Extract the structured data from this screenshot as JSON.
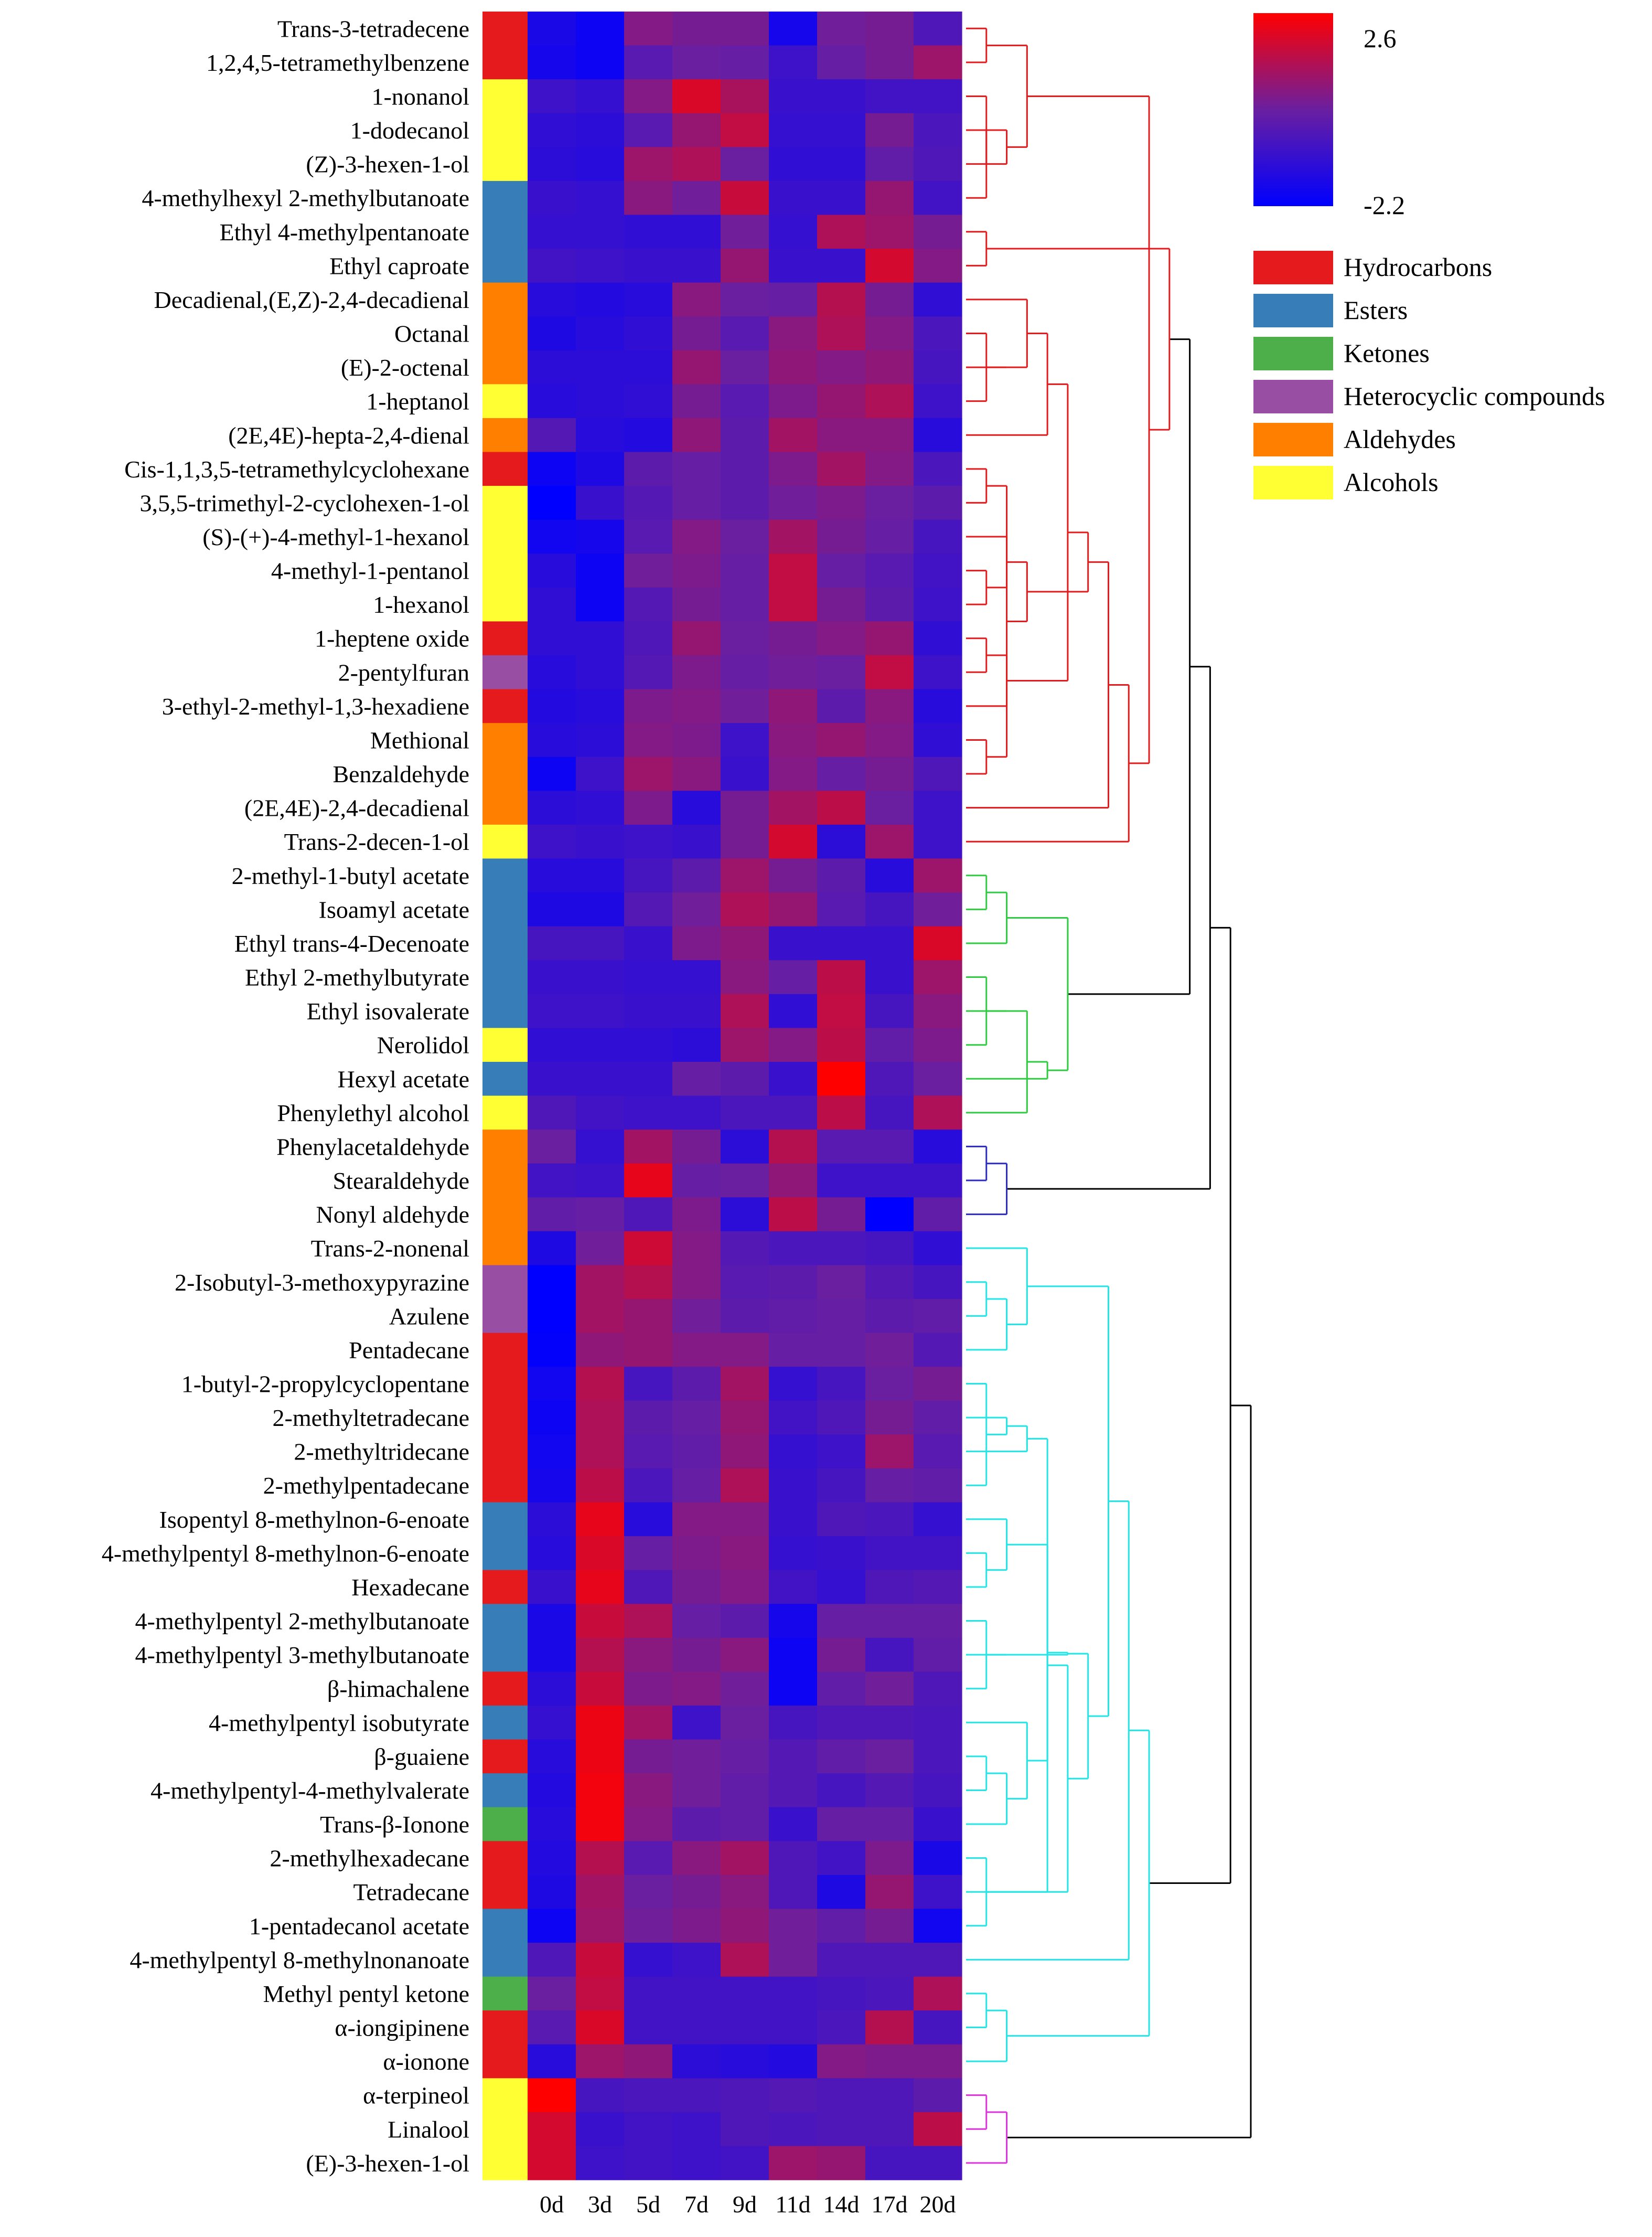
{
  "chart_data": {
    "type": "heatmap",
    "title": "",
    "columns": [
      "0d",
      "3d",
      "5d",
      "7d",
      "9d",
      "11d",
      "14d",
      "17d",
      "20d"
    ],
    "color_scale": {
      "min": -2.2,
      "max": 2.6,
      "min_label": "-2.2",
      "max_label": "2.6",
      "low_color": "#0000ff",
      "mid_color": "#6a1fa0",
      "high_color": "#ff0000"
    },
    "category_legend": [
      {
        "name": "Hydrocarbons",
        "color": "#e41a1c"
      },
      {
        "name": "Esters",
        "color": "#377eb8"
      },
      {
        "name": "Ketones",
        "color": "#4daf4a"
      },
      {
        "name": "Heterocyclic compounds",
        "color": "#984ea3"
      },
      {
        "name": "Aldehydes",
        "color": "#ff7f00"
      },
      {
        "name": "Alcohols",
        "color": "#ffff33"
      }
    ],
    "cluster_colors": [
      "#e41a1c",
      "#2ecc40",
      "#2b2bbf",
      "#22e5e5",
      "#dd33dd"
    ],
    "rows": [
      {
        "name": "Trans-3-tetradecene",
        "category": "Hydrocarbons",
        "cluster": 0,
        "values": [
          -1.6,
          -1.9,
          0.6,
          0.4,
          0.4,
          -1.7,
          0.3,
          0.4,
          -0.4
        ]
      },
      {
        "name": "1,2,4,5-tetramethylbenzene",
        "category": "Hydrocarbons",
        "cluster": 0,
        "values": [
          -1.7,
          -1.9,
          -0.2,
          0.2,
          0.1,
          -0.8,
          0.1,
          0.4,
          1.0
        ]
      },
      {
        "name": "1-nonanol",
        "category": "Alcohols",
        "cluster": 0,
        "values": [
          -0.8,
          -1.0,
          0.6,
          2.0,
          1.2,
          -0.9,
          -0.9,
          -0.7,
          -0.7
        ]
      },
      {
        "name": "1-dodecanol",
        "category": "Alcohols",
        "cluster": 0,
        "values": [
          -1.1,
          -1.2,
          -0.2,
          0.9,
          1.6,
          -1.0,
          -1.0,
          0.4,
          -0.5
        ]
      },
      {
        "name": "(Z)-3-hexen-1-ol",
        "category": "Alcohols",
        "cluster": 0,
        "values": [
          -1.2,
          -1.3,
          1.0,
          1.3,
          0.2,
          -1.1,
          -1.1,
          0.0,
          -0.4
        ]
      },
      {
        "name": "4-methylhexyl 2-methylbutanoate",
        "category": "Esters",
        "cluster": 0,
        "values": [
          -0.9,
          -1.0,
          0.7,
          0.3,
          1.7,
          -0.9,
          -0.9,
          0.9,
          -0.7
        ]
      },
      {
        "name": "Ethyl 4-methylpentanoate",
        "category": "Esters",
        "cluster": 0,
        "values": [
          -1.0,
          -1.0,
          -1.1,
          -1.1,
          0.3,
          -1.0,
          1.3,
          1.0,
          0.4
        ]
      },
      {
        "name": "Ethyl caproate",
        "category": "Esters",
        "cluster": 0,
        "values": [
          -0.7,
          -0.8,
          -0.9,
          -0.9,
          0.9,
          -0.9,
          -0.9,
          1.9,
          0.6
        ]
      },
      {
        "name": "Decadienal,(E,Z)-2,4-decadienal",
        "category": "Aldehydes",
        "cluster": 0,
        "values": [
          -1.3,
          -1.4,
          -1.3,
          0.7,
          0.2,
          0.1,
          1.4,
          0.4,
          -1.1
        ]
      },
      {
        "name": "Octanal",
        "category": "Aldehydes",
        "cluster": 0,
        "values": [
          -1.5,
          -1.3,
          -1.1,
          0.4,
          -0.2,
          0.7,
          1.3,
          0.6,
          -0.5
        ]
      },
      {
        "name": "(E)-2-octenal",
        "category": "Aldehydes",
        "cluster": 0,
        "values": [
          -1.2,
          -1.2,
          -1.2,
          0.9,
          0.2,
          0.8,
          0.6,
          0.8,
          -0.6
        ]
      },
      {
        "name": "1-heptanol",
        "category": "Alcohols",
        "cluster": 0,
        "values": [
          -1.3,
          -1.2,
          -1.1,
          0.4,
          -0.2,
          0.5,
          0.9,
          1.3,
          -0.8
        ]
      },
      {
        "name": "(2E,4E)-hepta-2,4-dienal",
        "category": "Aldehydes",
        "cluster": 0,
        "values": [
          -0.3,
          -1.3,
          -1.4,
          0.8,
          -0.1,
          1.1,
          0.7,
          0.7,
          -1.3
        ]
      },
      {
        "name": "Cis-1,1,3,5-tetramethylcyclohexane",
        "category": "Hydrocarbons",
        "cluster": 0,
        "values": [
          -1.9,
          -1.5,
          -0.1,
          0.1,
          -0.1,
          0.5,
          1.1,
          0.6,
          -0.5
        ]
      },
      {
        "name": "3,5,5-trimethyl-2-cyclohexen-1-ol",
        "category": "Alcohols",
        "cluster": 0,
        "values": [
          -2.2,
          -0.9,
          -0.3,
          0.1,
          -0.1,
          0.3,
          0.5,
          0.2,
          -0.1
        ]
      },
      {
        "name": "(S)-(+)-4-methyl-1-hexanol",
        "category": "Alcohols",
        "cluster": 0,
        "values": [
          -1.8,
          -1.7,
          -0.2,
          0.6,
          0.2,
          1.1,
          0.4,
          0.1,
          -0.6
        ]
      },
      {
        "name": "4-methyl-1-pentanol",
        "category": "Alcohols",
        "cluster": 0,
        "values": [
          -1.3,
          -1.9,
          0.3,
          0.5,
          0.1,
          1.6,
          0.1,
          -0.2,
          -0.7
        ]
      },
      {
        "name": "1-hexanol",
        "category": "Alcohols",
        "cluster": 0,
        "values": [
          -1.1,
          -1.9,
          -0.3,
          0.4,
          0.1,
          1.6,
          0.4,
          -0.1,
          -0.8
        ]
      },
      {
        "name": "1-heptene oxide",
        "category": "Hydrocarbons",
        "cluster": 0,
        "values": [
          -1.1,
          -1.1,
          -0.4,
          0.9,
          0.2,
          0.4,
          0.6,
          0.9,
          -1.1
        ]
      },
      {
        "name": "2-pentylfuran",
        "category": "Heterocyclic compounds",
        "cluster": 0,
        "values": [
          -1.3,
          -1.1,
          -0.3,
          0.5,
          0.1,
          0.3,
          0.2,
          1.6,
          -0.8
        ]
      },
      {
        "name": "3-ethyl-2-methyl-1,3-hexadiene",
        "category": "Hydrocarbons",
        "cluster": 0,
        "values": [
          -1.4,
          -1.3,
          0.5,
          0.6,
          0.3,
          0.8,
          -0.1,
          0.7,
          -1.3
        ]
      },
      {
        "name": "Methional",
        "category": "Aldehydes",
        "cluster": 0,
        "values": [
          -1.3,
          -1.2,
          0.6,
          0.5,
          -0.8,
          0.7,
          0.9,
          0.6,
          -1.1
        ]
      },
      {
        "name": "Benzaldehyde",
        "category": "Aldehydes",
        "cluster": 0,
        "values": [
          -1.9,
          -0.8,
          1.0,
          0.7,
          -0.9,
          0.6,
          0.1,
          0.4,
          -0.4
        ]
      },
      {
        "name": "(2E,4E)-2,4-decadienal",
        "category": "Aldehydes",
        "cluster": 0,
        "values": [
          -1.2,
          -1.1,
          0.5,
          -1.3,
          0.4,
          1.1,
          1.5,
          0.2,
          -0.8
        ]
      },
      {
        "name": "Trans-2-decen-1-ol",
        "category": "Alcohols",
        "cluster": 0,
        "values": [
          -0.8,
          -0.9,
          -0.8,
          -0.9,
          0.4,
          1.9,
          -1.2,
          1.0,
          -0.8
        ]
      },
      {
        "name": "2-methyl-1-butyl acetate",
        "category": "Esters",
        "cluster": 1,
        "values": [
          -1.3,
          -1.3,
          -0.6,
          -0.1,
          1.0,
          0.4,
          -0.1,
          -1.3,
          1.0
        ]
      },
      {
        "name": "Isoamyl acetate",
        "category": "Esters",
        "cluster": 1,
        "values": [
          -1.5,
          -1.5,
          -0.3,
          0.3,
          1.3,
          0.9,
          -0.2,
          -0.6,
          0.3
        ]
      },
      {
        "name": "Ethyl trans-4-Decenoate",
        "category": "Esters",
        "cluster": 1,
        "values": [
          -0.6,
          -0.6,
          -0.9,
          0.5,
          0.8,
          -0.9,
          -0.9,
          -0.9,
          2.0
        ]
      },
      {
        "name": "Ethyl 2-methylbutyrate",
        "category": "Esters",
        "cluster": 1,
        "values": [
          -0.9,
          -0.9,
          -1.0,
          -1.0,
          0.7,
          0.1,
          1.5,
          -0.9,
          1.0
        ]
      },
      {
        "name": "Ethyl isovalerate",
        "category": "Esters",
        "cluster": 1,
        "values": [
          -0.8,
          -0.8,
          -0.9,
          -0.9,
          1.3,
          -1.1,
          1.6,
          -0.6,
          0.7
        ]
      },
      {
        "name": "Nerolidol",
        "category": "Alcohols",
        "cluster": 1,
        "values": [
          -1.1,
          -1.1,
          -1.1,
          -1.2,
          1.0,
          0.6,
          1.5,
          0.0,
          0.5
        ]
      },
      {
        "name": "Hexyl acetate",
        "category": "Esters",
        "cluster": 1,
        "values": [
          -0.9,
          -0.9,
          -0.9,
          0.1,
          -0.1,
          -0.9,
          2.6,
          -0.4,
          0.2
        ]
      },
      {
        "name": "Phenylethyl alcohol",
        "category": "Alcohols",
        "cluster": 1,
        "values": [
          -0.4,
          -0.7,
          -0.8,
          -0.8,
          -0.5,
          -0.5,
          1.5,
          -0.6,
          1.3
        ]
      },
      {
        "name": "Phenylacetaldehyde",
        "category": "Aldehydes",
        "cluster": 2,
        "values": [
          0.2,
          -1.0,
          1.1,
          0.4,
          -1.2,
          1.4,
          -0.2,
          -0.2,
          -1.3
        ]
      },
      {
        "name": "Stearaldehyde",
        "category": "Aldehydes",
        "cluster": 2,
        "values": [
          -0.7,
          -0.8,
          2.2,
          0.1,
          0.2,
          0.8,
          -0.8,
          -0.8,
          -0.8
        ]
      },
      {
        "name": "Nonyl aldehyde",
        "category": "Aldehydes",
        "cluster": 2,
        "values": [
          0.0,
          0.1,
          -0.4,
          0.5,
          -1.2,
          1.5,
          0.4,
          -2.2,
          0.0
        ]
      },
      {
        "name": "Trans-2-nonenal",
        "category": "Aldehydes",
        "cluster": 3,
        "values": [
          -1.5,
          0.3,
          1.8,
          0.6,
          -0.3,
          -0.5,
          -0.5,
          -0.6,
          -1.1
        ]
      },
      {
        "name": "2-Isobutyl-3-methoxypyrazine",
        "category": "Heterocyclic compounds",
        "cluster": 3,
        "values": [
          -2.2,
          1.1,
          1.4,
          0.6,
          -0.2,
          -0.1,
          0.2,
          -0.3,
          -0.6
        ]
      },
      {
        "name": "Azulene",
        "category": "Heterocyclic compounds",
        "cluster": 3,
        "values": [
          -2.2,
          1.1,
          0.9,
          0.3,
          -0.1,
          0.0,
          0.1,
          -0.1,
          0.0
        ]
      },
      {
        "name": "Pentadecane",
        "category": "Hydrocarbons",
        "cluster": 3,
        "values": [
          -2.1,
          0.8,
          0.9,
          0.6,
          0.6,
          0.1,
          0.1,
          0.3,
          -0.3
        ]
      },
      {
        "name": "1-butyl-2-propylcyclopentane",
        "category": "Hydrocarbons",
        "cluster": 3,
        "values": [
          -1.8,
          1.4,
          -0.6,
          -0.1,
          1.1,
          -1.0,
          -0.6,
          0.2,
          0.4
        ]
      },
      {
        "name": "2-methyltetradecane",
        "category": "Hydrocarbons",
        "cluster": 3,
        "values": [
          -1.9,
          1.3,
          -0.1,
          0.1,
          0.9,
          -0.7,
          -0.4,
          0.4,
          0.0
        ]
      },
      {
        "name": "2-methyltridecane",
        "category": "Hydrocarbons",
        "cluster": 3,
        "values": [
          -1.8,
          1.3,
          -0.2,
          0.0,
          0.8,
          -1.0,
          -0.8,
          1.0,
          -0.2
        ]
      },
      {
        "name": "2-methylpentadecane",
        "category": "Hydrocarbons",
        "cluster": 3,
        "values": [
          -1.7,
          1.5,
          -0.5,
          0.1,
          1.3,
          -0.9,
          -0.6,
          0.1,
          0.0
        ]
      },
      {
        "name": "Isopentyl 8-methylnon-6-enoate",
        "category": "Esters",
        "cluster": 3,
        "values": [
          -1.2,
          2.2,
          -1.3,
          0.6,
          0.6,
          -0.9,
          -0.4,
          -0.5,
          -1.0
        ]
      },
      {
        "name": "4-methylpentyl 8-methylnon-6-enoate",
        "category": "Esters",
        "cluster": 3,
        "values": [
          -1.3,
          2.0,
          0.1,
          0.5,
          0.7,
          -1.0,
          -0.9,
          -0.7,
          -0.7
        ]
      },
      {
        "name": "Hexadecane",
        "category": "Hydrocarbons",
        "cluster": 3,
        "values": [
          -0.9,
          2.2,
          -0.4,
          0.4,
          0.6,
          -0.7,
          -1.0,
          -0.4,
          -0.3
        ]
      },
      {
        "name": "4-methylpentyl 2-methylbutanoate",
        "category": "Esters",
        "cluster": 3,
        "values": [
          -1.6,
          1.7,
          1.3,
          0.1,
          -0.1,
          -1.7,
          0.1,
          0.1,
          0.1
        ]
      },
      {
        "name": "4-methylpentyl 3-methylbutanoate",
        "category": "Esters",
        "cluster": 3,
        "values": [
          -1.6,
          1.4,
          0.7,
          0.4,
          0.7,
          -1.9,
          0.4,
          -0.6,
          0.0
        ]
      },
      {
        "name": "β-himachalene",
        "category": "Hydrocarbons",
        "cluster": 3,
        "values": [
          -1.2,
          1.7,
          0.5,
          0.6,
          0.3,
          -1.9,
          0.0,
          0.3,
          -0.4
        ]
      },
      {
        "name": "4-methylpentyl isobutyrate",
        "category": "Esters",
        "cluster": 3,
        "values": [
          -1.0,
          2.3,
          1.1,
          -0.8,
          0.2,
          -0.6,
          -0.4,
          -0.4,
          -0.5
        ]
      },
      {
        "name": "β-guaiene",
        "category": "Hydrocarbons",
        "cluster": 3,
        "values": [
          -1.3,
          2.3,
          0.4,
          0.3,
          0.1,
          -0.3,
          0.0,
          0.2,
          -0.5
        ]
      },
      {
        "name": "4-methylpentyl-4-methylvalerate",
        "category": "Esters",
        "cluster": 3,
        "values": [
          -1.4,
          2.4,
          0.7,
          0.3,
          0.0,
          -0.3,
          -0.6,
          -0.3,
          -0.6
        ]
      },
      {
        "name": "Trans-β-Ionone",
        "category": "Ketones",
        "cluster": 3,
        "values": [
          -1.3,
          2.4,
          0.6,
          -0.1,
          0.0,
          -0.9,
          0.1,
          0.1,
          -0.9
        ]
      },
      {
        "name": "2-methylhexadecane",
        "category": "Hydrocarbons",
        "cluster": 3,
        "values": [
          -1.4,
          1.4,
          -0.2,
          0.7,
          1.1,
          -0.4,
          -0.7,
          0.5,
          -1.6
        ]
      },
      {
        "name": "Tetradecane",
        "category": "Hydrocarbons",
        "cluster": 3,
        "values": [
          -1.5,
          1.1,
          0.2,
          0.4,
          0.7,
          -0.4,
          -1.5,
          0.9,
          -0.8
        ]
      },
      {
        "name": "1-pentadecanol acetate",
        "category": "Esters",
        "cluster": 3,
        "values": [
          -1.9,
          1.0,
          0.3,
          0.5,
          0.8,
          0.3,
          0.0,
          0.4,
          -1.8
        ]
      },
      {
        "name": "4-methylpentyl 8-methylnonanoate",
        "category": "Esters",
        "cluster": 3,
        "values": [
          -0.4,
          1.7,
          -1.0,
          -0.8,
          1.3,
          0.3,
          -0.4,
          -0.4,
          -0.4
        ]
      },
      {
        "name": "Methyl pentyl ketone",
        "category": "Ketones",
        "cluster": 3,
        "values": [
          0.2,
          1.6,
          -0.7,
          -0.7,
          -0.7,
          -0.7,
          -0.6,
          -0.5,
          1.3
        ]
      },
      {
        "name": "α-iongipinene",
        "category": "Hydrocarbons",
        "cluster": 3,
        "values": [
          -0.2,
          2.0,
          -0.7,
          -0.7,
          -0.7,
          -0.7,
          -0.5,
          1.4,
          -0.6
        ]
      },
      {
        "name": "α-ionone",
        "category": "Hydrocarbons",
        "cluster": 3,
        "values": [
          -1.3,
          1.0,
          0.8,
          -1.2,
          -1.3,
          -1.4,
          0.6,
          0.5,
          0.5
        ]
      },
      {
        "name": "α-terpineol",
        "category": "Alcohols",
        "cluster": 4,
        "values": [
          2.6,
          -0.6,
          -0.5,
          -0.5,
          -0.4,
          -0.3,
          -0.4,
          -0.4,
          -0.1
        ]
      },
      {
        "name": "Linalool",
        "category": "Alcohols",
        "cluster": 4,
        "values": [
          1.9,
          -0.9,
          -0.7,
          -0.8,
          -0.4,
          -0.5,
          -0.4,
          -0.4,
          1.5
        ]
      },
      {
        "name": "(E)-3-hexen-1-ol",
        "category": "Alcohols",
        "cluster": 4,
        "values": [
          1.9,
          -0.8,
          -0.7,
          -0.8,
          -0.7,
          1.0,
          0.9,
          -0.6,
          -0.6
        ]
      }
    ]
  }
}
